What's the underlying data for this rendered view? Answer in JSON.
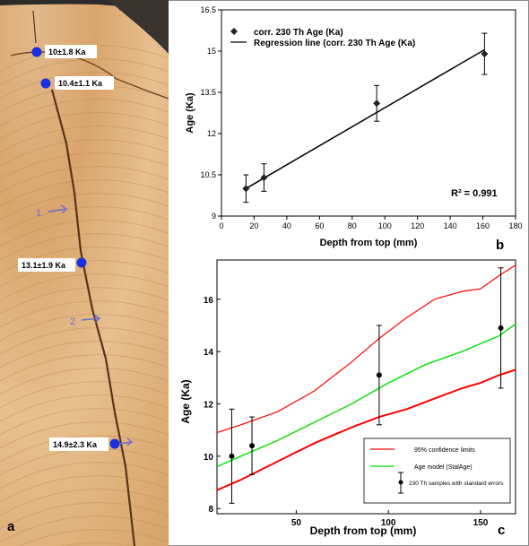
{
  "panel_labels": {
    "a": "a",
    "b": "b",
    "c": "c"
  },
  "photo": {
    "sample_labels": [
      "10±1.8 Ka",
      "10.4±1.1 Ka",
      "13.1±1.9 Ka",
      "14.9±2.3 Ka"
    ],
    "marker_color": "#1a2fe0",
    "arrow_labels": [
      "1",
      "2"
    ]
  },
  "chart_data": [
    {
      "type": "scatter",
      "panel": "b",
      "title": "",
      "xlabel": "Depth from top (mm)",
      "ylabel": "Age (Ka)",
      "xlim": [
        0,
        180
      ],
      "ylim": [
        9,
        16.5
      ],
      "x_ticks": [
        0,
        20,
        40,
        60,
        80,
        100,
        120,
        140,
        160,
        180
      ],
      "y_ticks": [
        9,
        10.5,
        12,
        13.5,
        15,
        16.5
      ],
      "grid": false,
      "legend_position": "top-left",
      "series": [
        {
          "name": "corr. 230 Th Age (Ka)",
          "x": [
            15,
            26,
            95,
            161
          ],
          "y": [
            10.0,
            10.4,
            13.1,
            14.9
          ],
          "yerr": [
            0.5,
            0.5,
            0.65,
            0.75
          ]
        },
        {
          "name": "Regression line (corr. 230 Th Age (Ka)",
          "x": [
            15,
            161
          ],
          "y": [
            10.0,
            15.05
          ]
        }
      ],
      "annotations": [
        "R² = 0.991"
      ]
    },
    {
      "type": "line",
      "panel": "c",
      "title": "",
      "xlabel": "Depth from top (mm)",
      "ylabel": "Age (Ka)",
      "xlim": [
        7,
        169
      ],
      "ylim": [
        7.8,
        17.5
      ],
      "x_ticks": [
        50,
        100,
        150
      ],
      "y_ticks": [
        8,
        10,
        12,
        14,
        16
      ],
      "grid": false,
      "legend_position": "bottom-right",
      "colors": {
        "upper": "#ff0000",
        "lower": "#ff0000",
        "model": "#00e000"
      },
      "series": [
        {
          "name": "95% confidence limits",
          "x": [
            7,
            20,
            40,
            60,
            80,
            95,
            110,
            125,
            140,
            150,
            160,
            169
          ],
          "y": [
            10.9,
            11.2,
            11.7,
            12.5,
            13.6,
            14.5,
            15.3,
            16.0,
            16.3,
            16.4,
            16.9,
            17.3
          ]
        },
        {
          "name": "",
          "x": [
            7,
            20,
            40,
            60,
            80,
            95,
            110,
            125,
            140,
            150,
            160,
            169
          ],
          "y": [
            8.7,
            9.1,
            9.8,
            10.5,
            11.1,
            11.5,
            11.8,
            12.2,
            12.6,
            12.8,
            13.1,
            13.3
          ]
        },
        {
          "name": "Age model (StalAge)",
          "x": [
            7,
            20,
            40,
            60,
            80,
            100,
            120,
            140,
            160,
            169
          ],
          "y": [
            9.6,
            10.0,
            10.6,
            11.3,
            12.0,
            12.8,
            13.5,
            14.0,
            14.6,
            15.05
          ]
        },
        {
          "name": "230 Th samples with standard errors",
          "x": [
            15,
            26,
            95,
            161
          ],
          "y": [
            10.0,
            10.4,
            13.1,
            14.9
          ],
          "yerr": [
            1.8,
            1.1,
            1.9,
            2.3
          ]
        }
      ]
    }
  ]
}
